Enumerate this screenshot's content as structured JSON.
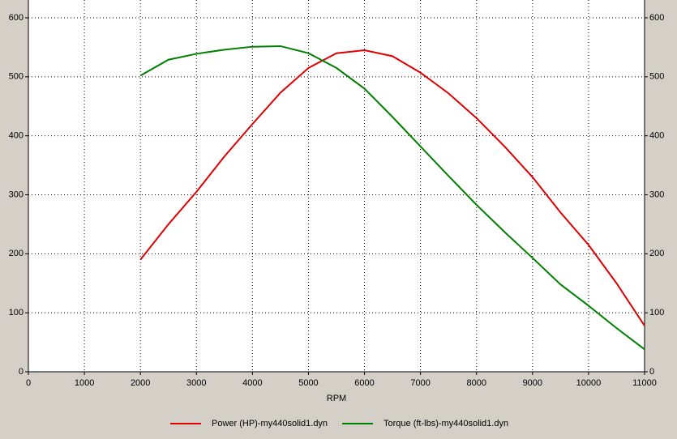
{
  "chart_data": {
    "type": "line",
    "x_label": "RPM",
    "x": [
      2000,
      2500,
      3000,
      3500,
      4000,
      4500,
      5000,
      5500,
      6000,
      6500,
      7000,
      7500,
      8000,
      8500,
      9000,
      9500,
      10000,
      10500,
      11000
    ],
    "series": [
      {
        "name": "Power (HP)-my440solid1.dyn",
        "color": "#e00000",
        "values": [
          190,
          250,
          305,
          365,
          420,
          473,
          515,
          540,
          545,
          535,
          507,
          472,
          430,
          382,
          330,
          270,
          215,
          150,
          78
        ]
      },
      {
        "name": "Torque (ft-lbs)-my440solid1.dyn",
        "color": "#008000",
        "values": [
          502,
          529,
          539,
          546,
          551,
          552,
          540,
          515,
          480,
          432,
          382,
          332,
          283,
          237,
          193,
          148,
          112,
          74,
          38
        ]
      }
    ],
    "xlim": [
      0,
      11000
    ],
    "xticks": [
      0,
      1000,
      2000,
      3000,
      4000,
      5000,
      6000,
      7000,
      8000,
      9000,
      10000,
      11000
    ],
    "ylim": [
      0,
      600
    ],
    "yticks": [
      0,
      100,
      200,
      300,
      400,
      500,
      600
    ],
    "grid": true,
    "legend": "bottom"
  }
}
